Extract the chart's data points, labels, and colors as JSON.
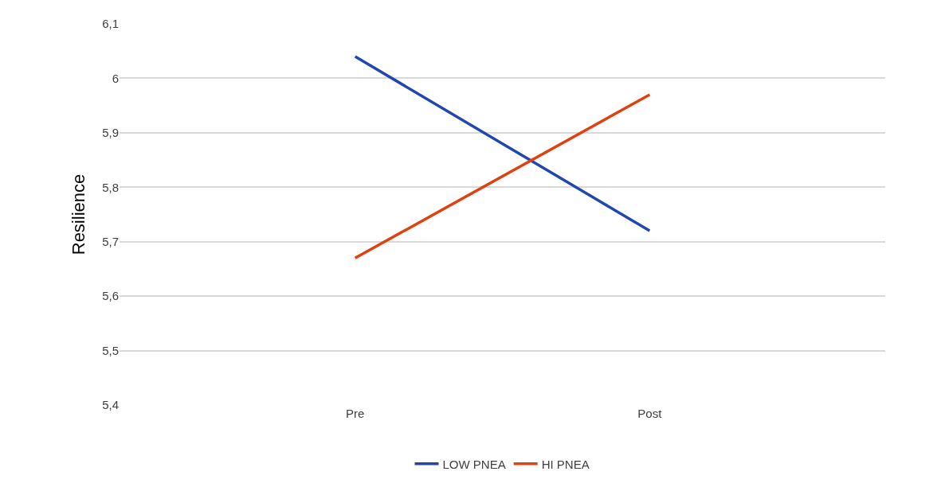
{
  "chart_data": {
    "type": "line",
    "ylabel": "Resilience",
    "categories": [
      "Pre",
      "Post"
    ],
    "series": [
      {
        "name": "LOW PNEA",
        "color": "#1f47b0",
        "values": [
          6.04,
          5.72
        ]
      },
      {
        "name": "HI PNEA",
        "color": "#e0420f",
        "values": [
          5.67,
          5.97
        ]
      }
    ],
    "ylim": [
      5.4,
      6.1
    ],
    "yticks": [
      {
        "value": 5.4,
        "label": "5,4"
      },
      {
        "value": 5.5,
        "label": "5,5"
      },
      {
        "value": 5.6,
        "label": "5,6"
      },
      {
        "value": 5.7,
        "label": "5,7"
      },
      {
        "value": 5.8,
        "label": "5,8"
      },
      {
        "value": 5.9,
        "label": "5,9"
      },
      6,
      {
        "value": 6.1,
        "label": "6,1"
      }
    ],
    "grid": "y",
    "legend": "bottom",
    "marker": "none",
    "line_style": "solid"
  }
}
